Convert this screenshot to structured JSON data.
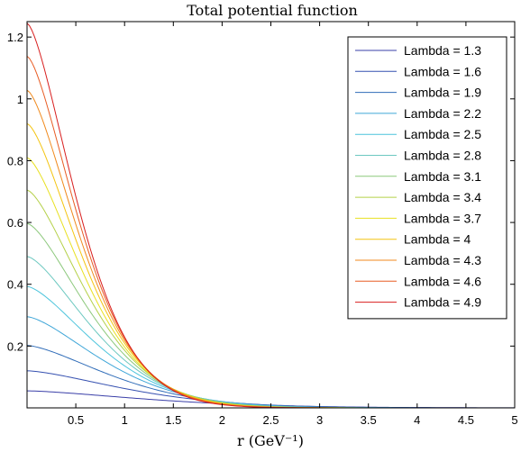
{
  "chart_data": {
    "type": "line",
    "title": "Total potential function",
    "xlabel": "r (GeV⁻¹)",
    "ylabel": "",
    "xlim": [
      0,
      5
    ],
    "ylim": [
      0,
      1.25
    ],
    "xticks": [
      0.5,
      1,
      1.5,
      2,
      2.5,
      3,
      3.5,
      4,
      4.5,
      5
    ],
    "xtick_labels": [
      "0.5",
      "1",
      "1.5",
      "2",
      "2.5",
      "3",
      "3.5",
      "4",
      "4.5",
      "5"
    ],
    "yticks": [
      0.2,
      0.4,
      0.6,
      0.8,
      1,
      1.2
    ],
    "ytick_labels": [
      "0.2",
      "0.4",
      "0.6",
      "0.8",
      "1",
      "1.2"
    ],
    "grid": false,
    "legend_position": "top-right",
    "series": [
      {
        "name": "Lambda = 1.3",
        "color": "#3a3fa8",
        "y0": 0.055,
        "decay": 0.62
      },
      {
        "name": "Lambda = 1.6",
        "color": "#3550b0",
        "y0": 0.12,
        "decay": 0.75
      },
      {
        "name": "Lambda = 1.9",
        "color": "#2f6cb8",
        "y0": 0.202,
        "decay": 0.87
      },
      {
        "name": "Lambda = 2.2",
        "color": "#3fa6d8",
        "y0": 0.295,
        "decay": 0.96
      },
      {
        "name": "Lambda = 2.5",
        "color": "#4cc4dc",
        "y0": 0.393,
        "decay": 1.04
      },
      {
        "name": "Lambda = 2.8",
        "color": "#6cc8c0",
        "y0": 0.49,
        "decay": 1.1
      },
      {
        "name": "Lambda = 3.1",
        "color": "#8cc87c",
        "y0": 0.597,
        "decay": 1.16
      },
      {
        "name": "Lambda = 3.4",
        "color": "#b4d048",
        "y0": 0.705,
        "decay": 1.21
      },
      {
        "name": "Lambda = 3.7",
        "color": "#e8e020",
        "y0": 0.81,
        "decay": 1.26
      },
      {
        "name": "Lambda = 4",
        "color": "#f4c410",
        "y0": 0.92,
        "decay": 1.3
      },
      {
        "name": "Lambda = 4.3",
        "color": "#f08a1e",
        "y0": 1.028,
        "decay": 1.34
      },
      {
        "name": "Lambda = 4.6",
        "color": "#e85c24",
        "y0": 1.138,
        "decay": 1.38
      },
      {
        "name": "Lambda = 4.9",
        "color": "#d81e1e",
        "y0": 1.245,
        "decay": 1.42
      }
    ]
  }
}
